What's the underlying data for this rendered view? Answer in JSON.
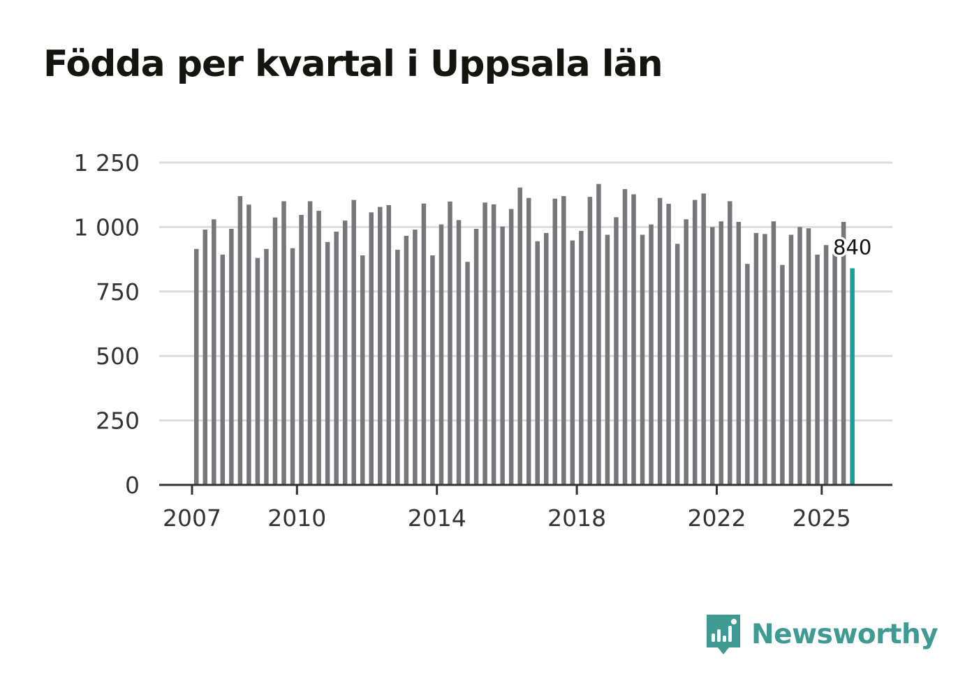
{
  "title": "Födda per kvartal i Uppsala län",
  "brand": {
    "name": "Newsworthy",
    "icon": "newsworthy-logo-icon"
  },
  "colors": {
    "bar": "#77767b",
    "highlight": "#1a9e96",
    "grid": "#dddddd",
    "axis": "#333333",
    "brand": "#3f9a93"
  },
  "chart_data": {
    "type": "bar",
    "title": "Födda per kvartal i Uppsala län",
    "xlabel": "",
    "ylabel": "",
    "ylim": [
      0,
      1250
    ],
    "yticks": [
      0,
      250,
      500,
      750,
      1000,
      1250
    ],
    "ytick_labels": [
      "0",
      "250",
      "500",
      "750",
      "1 000",
      "1 250"
    ],
    "xticks": [
      {
        "year": 2007,
        "label": "2007"
      },
      {
        "year": 2010,
        "label": "2010"
      },
      {
        "year": 2014,
        "label": "2014"
      },
      {
        "year": 2018,
        "label": "2018"
      },
      {
        "year": 2022,
        "label": "2022"
      },
      {
        "year": 2025,
        "label": "2025"
      }
    ],
    "start": {
      "year": 2007,
      "quarter": 1
    },
    "values": [
      915,
      990,
      1030,
      893,
      993,
      1120,
      1087,
      880,
      915,
      1037,
      1100,
      918,
      1047,
      1100,
      1063,
      942,
      982,
      1025,
      1105,
      890,
      1057,
      1078,
      1085,
      912,
      966,
      990,
      1091,
      890,
      1010,
      1099,
      1027,
      865,
      993,
      1095,
      1088,
      1002,
      1070,
      1153,
      1113,
      945,
      977,
      1110,
      1120,
      948,
      985,
      1117,
      1167,
      970,
      1038,
      1147,
      1127,
      970,
      1010,
      1113,
      1090,
      935,
      1030,
      1105,
      1130,
      1000,
      1022,
      1100,
      1020,
      857,
      977,
      973,
      1022,
      853,
      970,
      1000,
      995,
      893,
      930,
      897,
      1020,
      840
    ],
    "highlight_index": 75,
    "highlight_label": "840"
  }
}
